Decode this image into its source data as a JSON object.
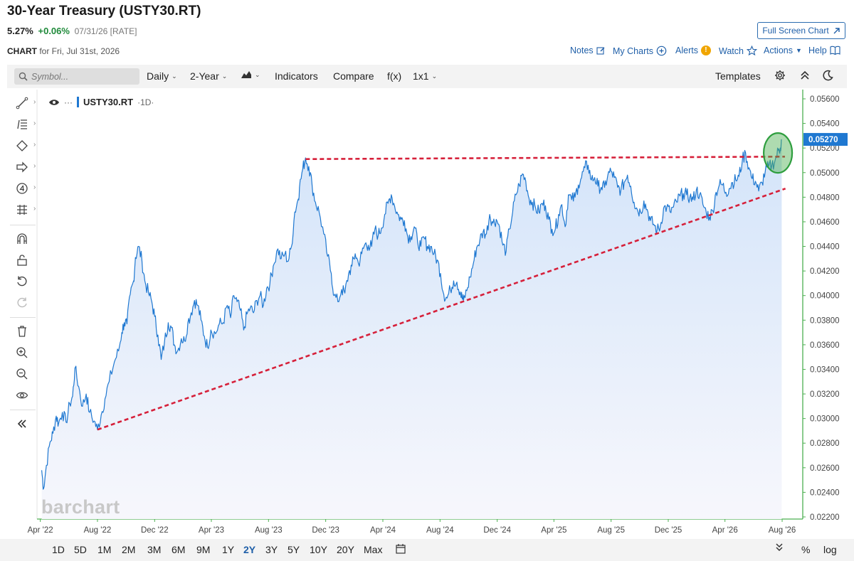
{
  "header": {
    "title": "30-Year Treasury (USTY30.RT)",
    "last": "5.27%",
    "change": "+0.06%",
    "date": "07/31/26 [RATE]",
    "chart_label": "CHART",
    "chart_for": "for Fri, Jul 31st, 2026",
    "fullscreen": "Full Screen Chart"
  },
  "links": {
    "notes": "Notes",
    "mycharts": "My Charts",
    "alerts": "Alerts",
    "alert_badge": "!",
    "watch": "Watch",
    "actions": "Actions",
    "help": "Help"
  },
  "toolbar": {
    "search_placeholder": "Symbol...",
    "interval": "Daily",
    "period": "2-Year",
    "indicators": "Indicators",
    "compare": "Compare",
    "fx": "f(x)",
    "layout": "1x1",
    "templates": "Templates"
  },
  "legend": {
    "symbol": "USTY30.RT",
    "interval": "·1D·"
  },
  "watermark": "barchart",
  "ranges": [
    "1D",
    "5D",
    "1M",
    "2M",
    "3M",
    "6M",
    "9M",
    "1Y",
    "2Y",
    "3Y",
    "5Y",
    "10Y",
    "20Y",
    "Max"
  ],
  "active_range": "2Y",
  "bottom_right": {
    "pct": "%",
    "log": "log"
  },
  "chart_data": {
    "type": "area",
    "series": [
      {
        "x": [
          "2022-04-04",
          "2022-04-08",
          "2022-04-14",
          "2022-04-22",
          "2022-04-28",
          "2022-05-05",
          "2022-05-10",
          "2022-05-18",
          "2022-05-26",
          "2022-06-03",
          "2022-06-09",
          "2022-06-14",
          "2022-06-22",
          "2022-06-30",
          "2022-07-08",
          "2022-07-15",
          "2022-07-25",
          "2022-08-01",
          "2022-08-09",
          "2022-08-17",
          "2022-08-26",
          "2022-09-06",
          "2022-09-15",
          "2022-09-22",
          "2022-09-27",
          "2022-10-03",
          "2022-10-10",
          "2022-10-17",
          "2022-10-21",
          "2022-10-28",
          "2022-11-04",
          "2022-11-10",
          "2022-11-18",
          "2022-11-25",
          "2022-12-01",
          "2022-12-08",
          "2022-12-15",
          "2022-12-22",
          "2022-12-30",
          "2023-01-06",
          "2023-01-12",
          "2023-01-19",
          "2023-01-27",
          "2023-02-03",
          "2023-02-10",
          "2023-02-17",
          "2023-02-24",
          "2023-03-03",
          "2023-03-10",
          "2023-03-17",
          "2023-03-24",
          "2023-03-31",
          "2023-04-10",
          "2023-04-18",
          "2023-04-26",
          "2023-05-05",
          "2023-05-12",
          "2023-05-19",
          "2023-05-26",
          "2023-06-02",
          "2023-06-09",
          "2023-06-16",
          "2023-06-23",
          "2023-06-30",
          "2023-07-07",
          "2023-07-14",
          "2023-07-21",
          "2023-07-28",
          "2023-08-04",
          "2023-08-11",
          "2023-08-21",
          "2023-08-28",
          "2023-09-05",
          "2023-09-12",
          "2023-09-19",
          "2023-09-26",
          "2023-10-03",
          "2023-10-06",
          "2023-10-13",
          "2023-10-19",
          "2023-10-26",
          "2023-11-02",
          "2023-11-09",
          "2023-11-17",
          "2023-11-27",
          "2023-12-05",
          "2023-12-13",
          "2023-12-19",
          "2023-12-27",
          "2024-01-04",
          "2024-01-11",
          "2024-01-19",
          "2024-01-26",
          "2024-02-02",
          "2024-02-09",
          "2024-02-16",
          "2024-02-23",
          "2024-03-01",
          "2024-03-08",
          "2024-03-15",
          "2024-03-22",
          "2024-03-29",
          "2024-04-05",
          "2024-04-12",
          "2024-04-19",
          "2024-04-26",
          "2024-05-03",
          "2024-05-10",
          "2024-05-17",
          "2024-05-24",
          "2024-05-31",
          "2024-06-07",
          "2024-06-14",
          "2024-06-21",
          "2024-06-28",
          "2024-07-05",
          "2024-07-12",
          "2024-07-19",
          "2024-07-26",
          "2024-08-02",
          "2024-08-09",
          "2024-08-16",
          "2024-08-23",
          "2024-08-30",
          "2024-09-06",
          "2024-09-13",
          "2024-09-17",
          "2024-09-20",
          "2024-09-27",
          "2024-10-04",
          "2024-10-11",
          "2024-10-18",
          "2024-10-25",
          "2024-11-01",
          "2024-11-08",
          "2024-11-15",
          "2024-11-22",
          "2024-11-29",
          "2024-12-06",
          "2024-12-13",
          "2024-12-20",
          "2024-12-27",
          "2025-01-03",
          "2025-01-10",
          "2025-01-17",
          "2025-01-24",
          "2025-01-31",
          "2025-02-07",
          "2025-02-14",
          "2025-02-21",
          "2025-02-28",
          "2025-03-07",
          "2025-03-14",
          "2025-03-21",
          "2025-03-28",
          "2025-04-04",
          "2025-04-11",
          "2025-04-18",
          "2025-04-25",
          "2025-05-02",
          "2025-05-09",
          "2025-05-16",
          "2025-05-23",
          "2025-05-30",
          "2025-06-06",
          "2025-06-13",
          "2025-06-20",
          "2025-06-27",
          "2025-07-04",
          "2025-07-11",
          "2025-07-18",
          "2025-07-25",
          "2025-08-01",
          "2025-08-08",
          "2025-08-15",
          "2025-08-22",
          "2025-08-29",
          "2025-09-05",
          "2025-09-12",
          "2025-09-19",
          "2025-09-26",
          "2025-10-03",
          "2025-10-10",
          "2025-10-17",
          "2025-10-24",
          "2025-10-31",
          "2025-11-07",
          "2025-11-14",
          "2025-11-21",
          "2025-11-28",
          "2025-12-05",
          "2025-12-12",
          "2025-12-19",
          "2025-12-26",
          "2026-01-02",
          "2026-01-09",
          "2026-01-16",
          "2026-01-23",
          "2026-01-30",
          "2026-02-06",
          "2026-02-13",
          "2026-02-20",
          "2026-02-27",
          "2026-03-06",
          "2026-03-13",
          "2026-03-20",
          "2026-03-27",
          "2026-04-03",
          "2026-04-10",
          "2026-04-17",
          "2026-04-24",
          "2026-05-01",
          "2026-05-08",
          "2026-05-15",
          "2026-05-22",
          "2026-05-29",
          "2026-06-05",
          "2026-06-12",
          "2026-06-19",
          "2026-06-26",
          "2026-07-03",
          "2026-07-10",
          "2026-07-17",
          "2026-07-24",
          "2026-07-28",
          "2026-07-31"
        ],
        "y": [
          0.0258,
          0.0243,
          0.0262,
          0.0281,
          0.0288,
          0.0302,
          0.0296,
          0.0305,
          0.0297,
          0.0312,
          0.0318,
          0.0341,
          0.0326,
          0.031,
          0.032,
          0.0305,
          0.0298,
          0.0291,
          0.0303,
          0.0316,
          0.033,
          0.0346,
          0.0355,
          0.037,
          0.0378,
          0.0377,
          0.0401,
          0.0412,
          0.0431,
          0.044,
          0.0428,
          0.0412,
          0.0402,
          0.0395,
          0.0383,
          0.0368,
          0.0348,
          0.0362,
          0.0378,
          0.0374,
          0.036,
          0.0355,
          0.0365,
          0.0363,
          0.0378,
          0.0386,
          0.0396,
          0.0392,
          0.038,
          0.0367,
          0.0358,
          0.0372,
          0.0369,
          0.0377,
          0.0378,
          0.0392,
          0.0382,
          0.04,
          0.0395,
          0.0388,
          0.0372,
          0.0385,
          0.039,
          0.0386,
          0.0396,
          0.04,
          0.0392,
          0.0406,
          0.041,
          0.0424,
          0.0438,
          0.043,
          0.0434,
          0.0428,
          0.044,
          0.0468,
          0.0478,
          0.0488,
          0.0503,
          0.0512,
          0.0505,
          0.049,
          0.0476,
          0.0468,
          0.045,
          0.0432,
          0.0418,
          0.04,
          0.0395,
          0.0405,
          0.0402,
          0.0418,
          0.0424,
          0.0434,
          0.0426,
          0.0434,
          0.0442,
          0.0441,
          0.044,
          0.0454,
          0.0449,
          0.0455,
          0.0466,
          0.0475,
          0.0482,
          0.0473,
          0.0466,
          0.0462,
          0.0461,
          0.0448,
          0.0448,
          0.0456,
          0.0444,
          0.044,
          0.0447,
          0.044,
          0.044,
          0.0434,
          0.0429,
          0.0418,
          0.0401,
          0.0398,
          0.0405,
          0.0412,
          0.0411,
          0.0403,
          0.0398,
          0.0396,
          0.0404,
          0.0415,
          0.0426,
          0.0439,
          0.0445,
          0.0452,
          0.045,
          0.0466,
          0.0459,
          0.0462,
          0.0456,
          0.0441,
          0.0436,
          0.0454,
          0.0468,
          0.0482,
          0.049,
          0.0499,
          0.0493,
          0.0479,
          0.0476,
          0.0471,
          0.0468,
          0.0475,
          0.0473,
          0.0462,
          0.0454,
          0.0454,
          0.0466,
          0.0474,
          0.0456,
          0.0482,
          0.0478,
          0.048,
          0.049,
          0.0496,
          0.0504,
          0.0506,
          0.0494,
          0.0496,
          0.0489,
          0.0488,
          0.0488,
          0.0498,
          0.0501,
          0.0496,
          0.0488,
          0.0486,
          0.0492,
          0.0498,
          0.0489,
          0.0476,
          0.047,
          0.0468,
          0.0477,
          0.047,
          0.0461,
          0.0458,
          0.0453,
          0.0456,
          0.0471,
          0.0472,
          0.0468,
          0.0472,
          0.0476,
          0.0481,
          0.0483,
          0.0482,
          0.048,
          0.0478,
          0.0486,
          0.0482,
          0.0474,
          0.0468,
          0.0464,
          0.0469,
          0.0484,
          0.049,
          0.049,
          0.0484,
          0.0487,
          0.0492,
          0.0494,
          0.0497,
          0.051,
          0.0516,
          0.0504,
          0.0495,
          0.0493,
          0.0485,
          0.0492,
          0.0501,
          0.0505,
          0.0506,
          0.051,
          0.0518,
          0.052,
          0.0527
        ]
      }
    ],
    "y_ticks": [
      "0.02200",
      "0.02400",
      "0.02600",
      "0.02800",
      "0.03000",
      "0.03200",
      "0.03400",
      "0.03600",
      "0.03800",
      "0.04000",
      "0.04200",
      "0.04400",
      "0.04600",
      "0.04800",
      "0.05000",
      "0.05200",
      "0.05400",
      "0.05600"
    ],
    "ylim": [
      0.0218,
      0.057
    ],
    "x_ticks": [
      {
        "date": "2022-04-01",
        "label": "Apr '22"
      },
      {
        "date": "2022-08-01",
        "label": "Aug '22"
      },
      {
        "date": "2022-12-01",
        "label": "Dec '22"
      },
      {
        "date": "2023-04-01",
        "label": "Apr '23"
      },
      {
        "date": "2023-08-01",
        "label": "Aug '23"
      },
      {
        "date": "2023-12-01",
        "label": "Dec '23"
      },
      {
        "date": "2024-04-01",
        "label": "Apr '24"
      },
      {
        "date": "2024-08-01",
        "label": "Aug '24"
      },
      {
        "date": "2024-12-01",
        "label": "Dec '24"
      },
      {
        "date": "2025-04-01",
        "label": "Apr '25"
      },
      {
        "date": "2025-08-01",
        "label": "Aug '25"
      },
      {
        "date": "2025-12-01",
        "label": "Dec '25"
      },
      {
        "date": "2026-04-01",
        "label": "Apr '26"
      },
      {
        "date": "2026-08-01",
        "label": "Aug '26"
      }
    ],
    "last_value_label": "0.05270",
    "annotations": {
      "resistance": {
        "x": [
          "2023-10-19",
          "2026-08-07"
        ],
        "y": [
          0.0511,
          0.0513
        ],
        "color": "#d6203a",
        "style": "dashed"
      },
      "support": {
        "x": [
          "2022-08-01",
          "2026-08-08"
        ],
        "y": [
          0.0291,
          0.0487
        ],
        "color": "#d6203a",
        "style": "dashed"
      },
      "breakout_circle": {
        "x": "2026-07-23",
        "y": 0.0516,
        "color": "#2e9e3e"
      }
    },
    "colors": {
      "line": "#1f78d1",
      "area": "#dbe9fa",
      "axis_green": "#4caf50",
      "last_badge": "#1f78d1"
    },
    "grid": false
  }
}
